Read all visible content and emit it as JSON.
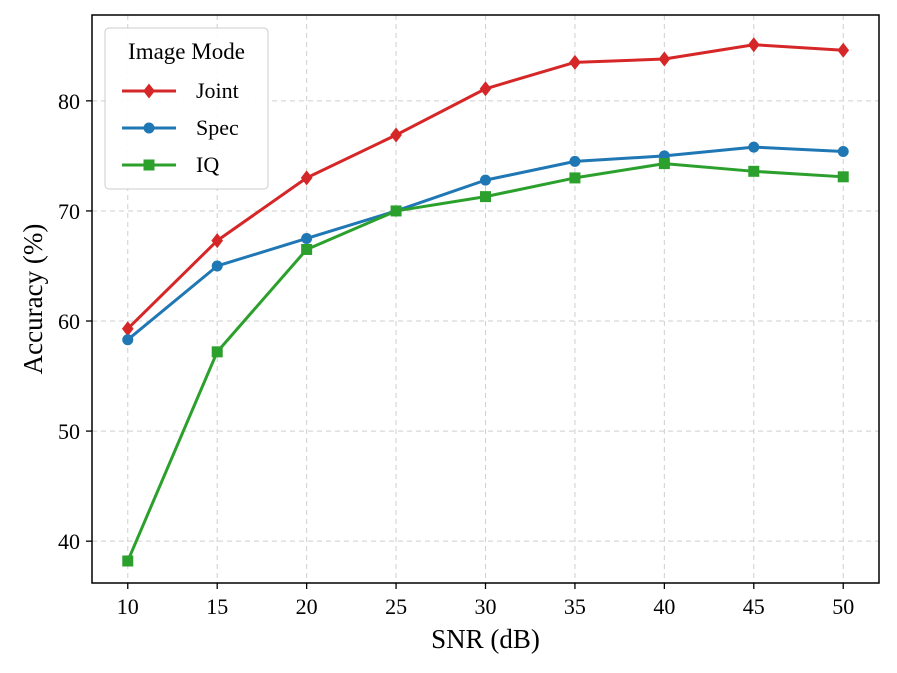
{
  "chart_data": {
    "type": "line",
    "title": "",
    "xlabel": "SNR (dB)",
    "ylabel": "Accuracy (%)",
    "x": [
      10,
      15,
      20,
      25,
      30,
      35,
      40,
      45,
      50
    ],
    "x_ticks": [
      "10",
      "15",
      "20",
      "25",
      "30",
      "35",
      "40",
      "45",
      "50"
    ],
    "y_ticks": [
      "40",
      "50",
      "60",
      "70",
      "80"
    ],
    "xlim": [
      8,
      52
    ],
    "ylim": [
      36.2,
      87.8
    ],
    "grid": true,
    "legend": {
      "title": "Image Mode",
      "placement": "top-left"
    },
    "series": [
      {
        "name": "Joint",
        "color": "#d62728",
        "marker": "diamond",
        "values": [
          59.3,
          67.3,
          73.0,
          76.9,
          81.1,
          83.5,
          83.8,
          85.1,
          84.6
        ]
      },
      {
        "name": "Spec",
        "color": "#1f77b4",
        "marker": "circle",
        "values": [
          58.3,
          65.0,
          67.5,
          70.0,
          72.8,
          74.5,
          75.0,
          75.8,
          75.4
        ]
      },
      {
        "name": "IQ",
        "color": "#2ca02c",
        "marker": "square",
        "values": [
          38.2,
          57.2,
          66.5,
          70.0,
          71.3,
          73.0,
          74.3,
          73.6,
          73.1
        ]
      }
    ]
  }
}
